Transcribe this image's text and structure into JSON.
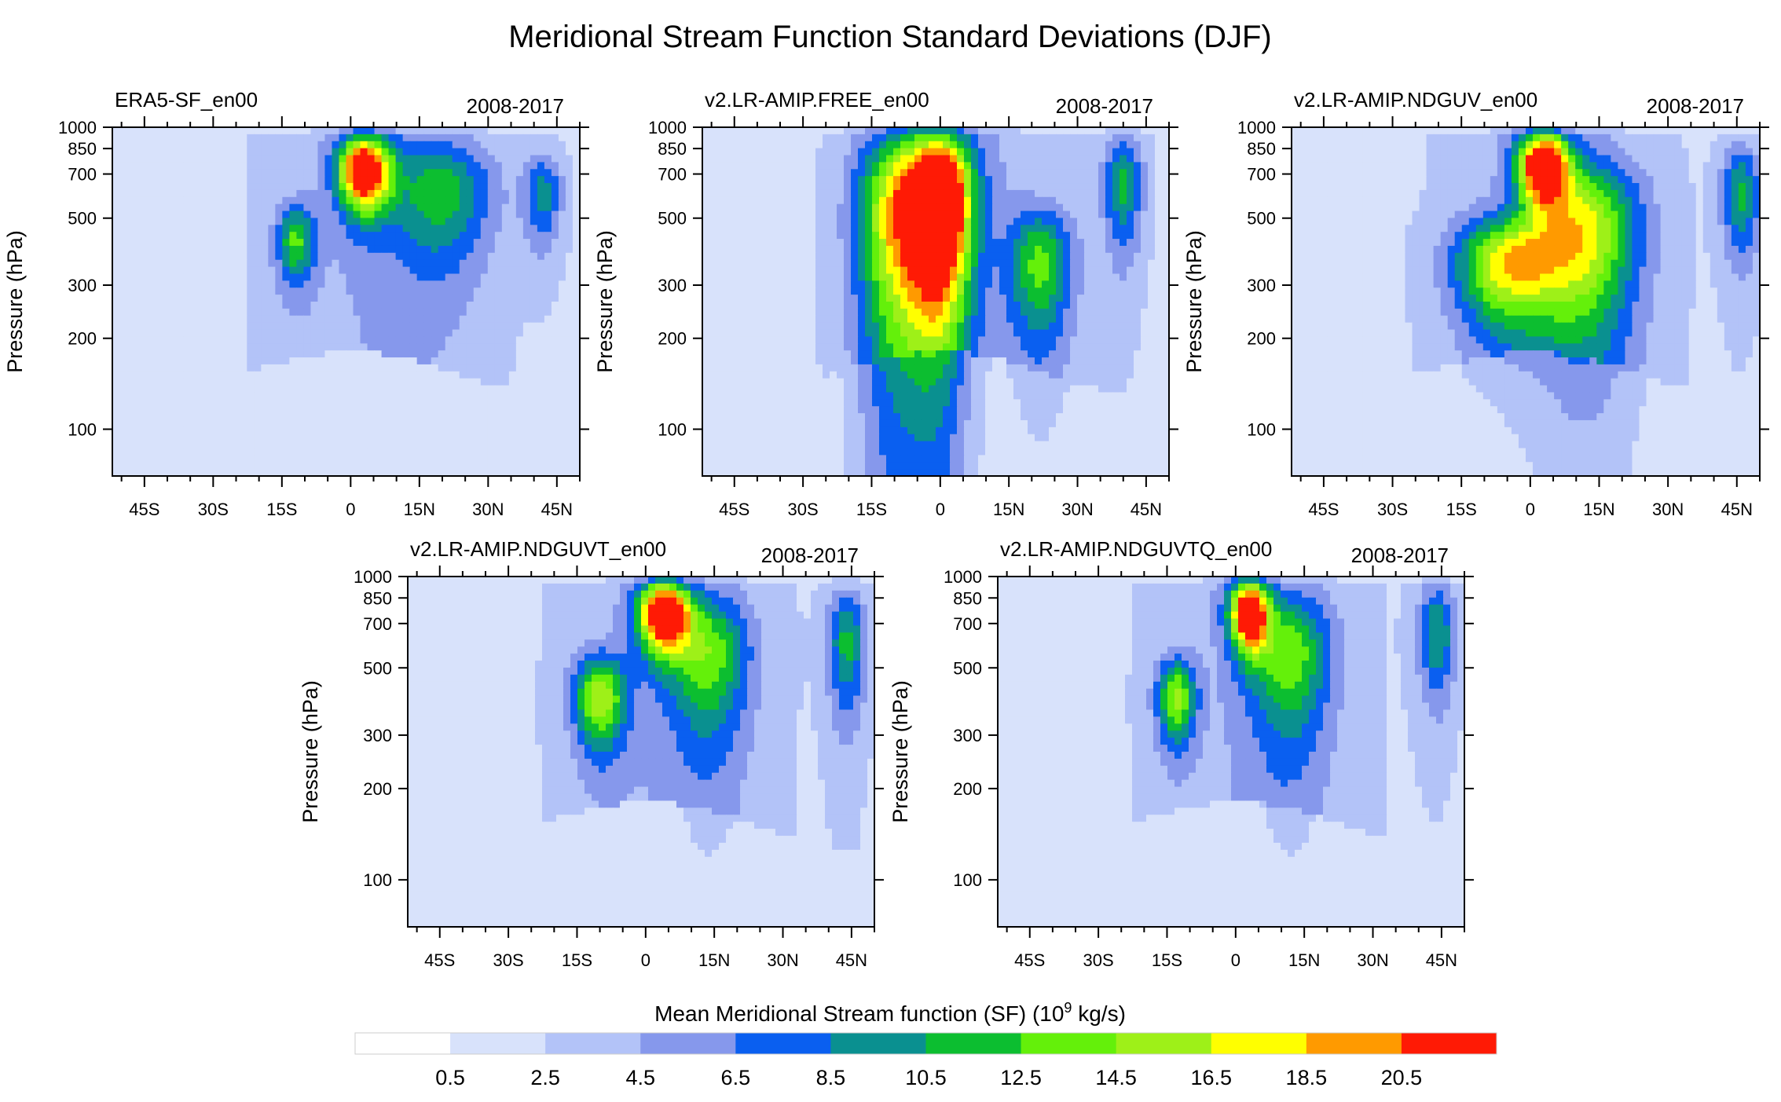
{
  "figure": {
    "title": "Meridional Stream Function Standard Deviations (DJF)"
  },
  "chart_data": {
    "type": "heatmap",
    "panels": [
      {
        "name": "ERA5-SF_en00",
        "period": "2008-2017",
        "blobs": [
          {
            "lat": 3,
            "p": 720,
            "val": 22,
            "sLat": 4,
            "sP": 140
          },
          {
            "lat": -12,
            "p": 420,
            "val": 9.6,
            "sLat": 3,
            "sP": 90
          },
          {
            "lat": 20,
            "p": 600,
            "val": 8.4,
            "sLat": 8,
            "sP": 200
          },
          {
            "lat": 42,
            "p": 600,
            "val": 7.2,
            "sLat": 3,
            "sP": 150
          }
        ]
      },
      {
        "name": "v2.LR-AMIP.FREE_en00",
        "period": "2008-2017",
        "blobs": [
          {
            "lat": 0,
            "p": 550,
            "val": 24,
            "sLat": 5,
            "sP": 260
          },
          {
            "lat": -10,
            "p": 500,
            "val": 14,
            "sLat": 6,
            "sP": 300
          },
          {
            "lat": 22,
            "p": 350,
            "val": 10,
            "sLat": 5,
            "sP": 120
          },
          {
            "lat": 40,
            "p": 650,
            "val": 9,
            "sLat": 3,
            "sP": 200
          }
        ]
      },
      {
        "name": "v2.LR-AMIP.NDGUV_en00",
        "period": "2008-2017",
        "blobs": [
          {
            "lat": 3,
            "p": 750,
            "val": 22,
            "sLat": 4,
            "sP": 140
          },
          {
            "lat": -5,
            "p": 350,
            "val": 14,
            "sLat": 8,
            "sP": 100
          },
          {
            "lat": 12,
            "p": 450,
            "val": 13,
            "sLat": 8,
            "sP": 200
          },
          {
            "lat": 46,
            "p": 600,
            "val": 9,
            "sLat": 3,
            "sP": 180
          }
        ]
      },
      {
        "name": "v2.LR-AMIP.NDGUVT_en00",
        "period": "2008-2017",
        "blobs": [
          {
            "lat": 4,
            "p": 750,
            "val": 22,
            "sLat": 4,
            "sP": 140
          },
          {
            "lat": -10,
            "p": 400,
            "val": 13,
            "sLat": 4,
            "sP": 100
          },
          {
            "lat": 14,
            "p": 550,
            "val": 10,
            "sLat": 6,
            "sP": 200
          },
          {
            "lat": 44,
            "p": 600,
            "val": 9,
            "sLat": 3,
            "sP": 200
          }
        ]
      },
      {
        "name": "v2.LR-AMIP.NDGUVTQ_en00",
        "period": "2008-2017",
        "blobs": [
          {
            "lat": 3,
            "p": 760,
            "val": 21,
            "sLat": 3,
            "sP": 140
          },
          {
            "lat": -13,
            "p": 400,
            "val": 12,
            "sLat": 3,
            "sP": 90
          },
          {
            "lat": 12,
            "p": 550,
            "val": 10,
            "sLat": 6,
            "sP": 200
          },
          {
            "lat": 44,
            "p": 650,
            "val": 8.5,
            "sLat": 3,
            "sP": 200
          }
        ]
      }
    ],
    "xlim": [
      -52,
      50
    ],
    "ylim_hPa": [
      1000,
      70
    ],
    "x_ticks": [
      {
        "value": -45,
        "label": "45S"
      },
      {
        "value": -30,
        "label": "30S"
      },
      {
        "value": -15,
        "label": "15S"
      },
      {
        "value": 0,
        "label": "0"
      },
      {
        "value": 15,
        "label": "15N"
      },
      {
        "value": 30,
        "label": "30N"
      },
      {
        "value": 45,
        "label": "45N"
      }
    ],
    "y_ticks": [
      {
        "value": 100,
        "label": "100"
      },
      {
        "value": 200,
        "label": "200"
      },
      {
        "value": 300,
        "label": "300"
      },
      {
        "value": 500,
        "label": "500"
      },
      {
        "value": 700,
        "label": "700"
      },
      {
        "value": 850,
        "label": "850"
      },
      {
        "value": 1000,
        "label": "1000"
      }
    ],
    "ylabel": "Pressure (hPa)",
    "colorbar": {
      "label_prefix": "Mean Meridional Stream function (SF) (10",
      "label_exp": "9",
      "label_suffix": " kg/s)",
      "levels": [
        "0.5",
        "2.5",
        "4.5",
        "6.5",
        "8.5",
        "10.5",
        "12.5",
        "14.5",
        "16.5",
        "18.5",
        "20.5"
      ],
      "level_values": [
        0.5,
        2.5,
        4.5,
        6.5,
        8.5,
        10.5,
        12.5,
        14.5,
        16.5,
        18.5,
        20.5
      ],
      "colors": [
        "#ffffff",
        "#d8e2fb",
        "#b3c3f8",
        "#8698ec",
        "#0a5ff0",
        "#0a9090",
        "#0cbe30",
        "#64f00a",
        "#9ef018",
        "#ffff00",
        "#ff9a00",
        "#ff1a05"
      ]
    }
  }
}
